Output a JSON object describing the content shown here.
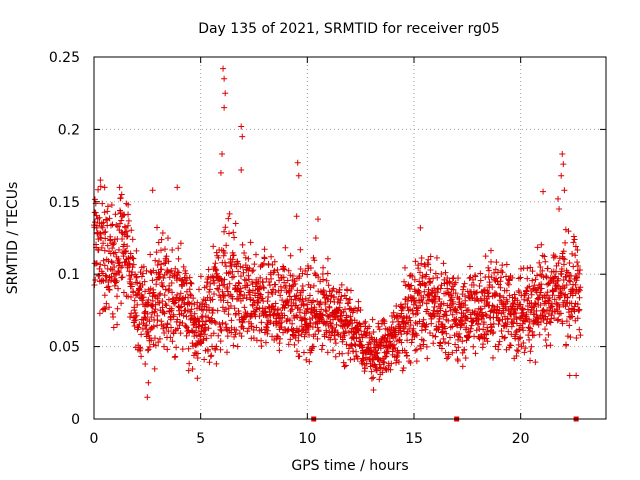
{
  "chart_data": {
    "type": "scatter",
    "title": "Day 135 of 2021, SRMTID for receiver rg05",
    "xlabel": "GPS time / hours",
    "ylabel": "SRMTID / TECUs",
    "xlim": [
      0,
      24
    ],
    "ylim": [
      0,
      0.25
    ],
    "x_ticks": [
      0,
      5,
      10,
      15,
      20
    ],
    "x_tick_labels": [
      "0",
      "5",
      "10",
      "15",
      "20"
    ],
    "y_ticks": [
      0,
      0.05,
      0.1,
      0.15,
      0.2,
      0.25
    ],
    "y_tick_labels": [
      "0",
      "0.05",
      "0.1",
      "0.15",
      "0.2",
      "0.25"
    ],
    "grid": true,
    "marker": "plus",
    "color": "#dd0000",
    "series": [
      {
        "name": "SRMTID",
        "x_range": [
          0,
          22.8
        ],
        "point_count": 2600,
        "envelope": {
          "x": [
            0.0,
            0.5,
            1.0,
            1.5,
            2.0,
            2.5,
            3.0,
            3.5,
            4.0,
            5.0,
            6.0,
            6.5,
            7.0,
            8.0,
            9.0,
            10.0,
            11.0,
            12.0,
            12.5,
            13.0,
            13.5,
            14.0,
            15.0,
            16.0,
            17.0,
            18.0,
            19.0,
            20.0,
            21.0,
            22.0,
            22.8
          ],
          "mean": [
            0.125,
            0.115,
            0.105,
            0.125,
            0.075,
            0.07,
            0.09,
            0.085,
            0.085,
            0.06,
            0.09,
            0.095,
            0.085,
            0.08,
            0.08,
            0.075,
            0.075,
            0.065,
            0.055,
            0.045,
            0.048,
            0.052,
            0.08,
            0.08,
            0.07,
            0.075,
            0.08,
            0.07,
            0.085,
            0.09,
            0.085
          ],
          "spread": [
            0.025,
            0.03,
            0.03,
            0.025,
            0.022,
            0.025,
            0.025,
            0.025,
            0.025,
            0.02,
            0.03,
            0.03,
            0.025,
            0.022,
            0.022,
            0.022,
            0.02,
            0.018,
            0.015,
            0.012,
            0.015,
            0.015,
            0.025,
            0.022,
            0.02,
            0.022,
            0.022,
            0.022,
            0.022,
            0.025,
            0.025
          ]
        },
        "outliers": [
          {
            "x": 0.3,
            "y": 0.165
          },
          {
            "x": 0.5,
            "y": 0.16
          },
          {
            "x": 1.2,
            "y": 0.16
          },
          {
            "x": 1.3,
            "y": 0.155
          },
          {
            "x": 1.6,
            "y": 0.148
          },
          {
            "x": 2.5,
            "y": 0.015
          },
          {
            "x": 2.55,
            "y": 0.025
          },
          {
            "x": 2.75,
            "y": 0.158
          },
          {
            "x": 3.9,
            "y": 0.16
          },
          {
            "x": 6.05,
            "y": 0.242
          },
          {
            "x": 6.1,
            "y": 0.235
          },
          {
            "x": 6.15,
            "y": 0.225
          },
          {
            "x": 6.1,
            "y": 0.215
          },
          {
            "x": 6.0,
            "y": 0.183
          },
          {
            "x": 5.95,
            "y": 0.17
          },
          {
            "x": 6.9,
            "y": 0.202
          },
          {
            "x": 6.95,
            "y": 0.195
          },
          {
            "x": 6.9,
            "y": 0.172
          },
          {
            "x": 9.55,
            "y": 0.177
          },
          {
            "x": 9.6,
            "y": 0.168
          },
          {
            "x": 9.5,
            "y": 0.14
          },
          {
            "x": 10.5,
            "y": 0.138
          },
          {
            "x": 10.4,
            "y": 0.125
          },
          {
            "x": 2.4,
            "y": 0.038
          },
          {
            "x": 13.1,
            "y": 0.02
          },
          {
            "x": 15.3,
            "y": 0.132
          },
          {
            "x": 21.05,
            "y": 0.157
          },
          {
            "x": 21.95,
            "y": 0.183
          },
          {
            "x": 22.0,
            "y": 0.176
          },
          {
            "x": 21.9,
            "y": 0.168
          },
          {
            "x": 22.05,
            "y": 0.158
          },
          {
            "x": 21.75,
            "y": 0.152
          },
          {
            "x": 21.8,
            "y": 0.145
          },
          {
            "x": 22.6,
            "y": 0.03
          },
          {
            "x": 22.3,
            "y": 0.03
          }
        ],
        "zero_markers": [
          10.3,
          17.0,
          22.6
        ]
      }
    ]
  }
}
